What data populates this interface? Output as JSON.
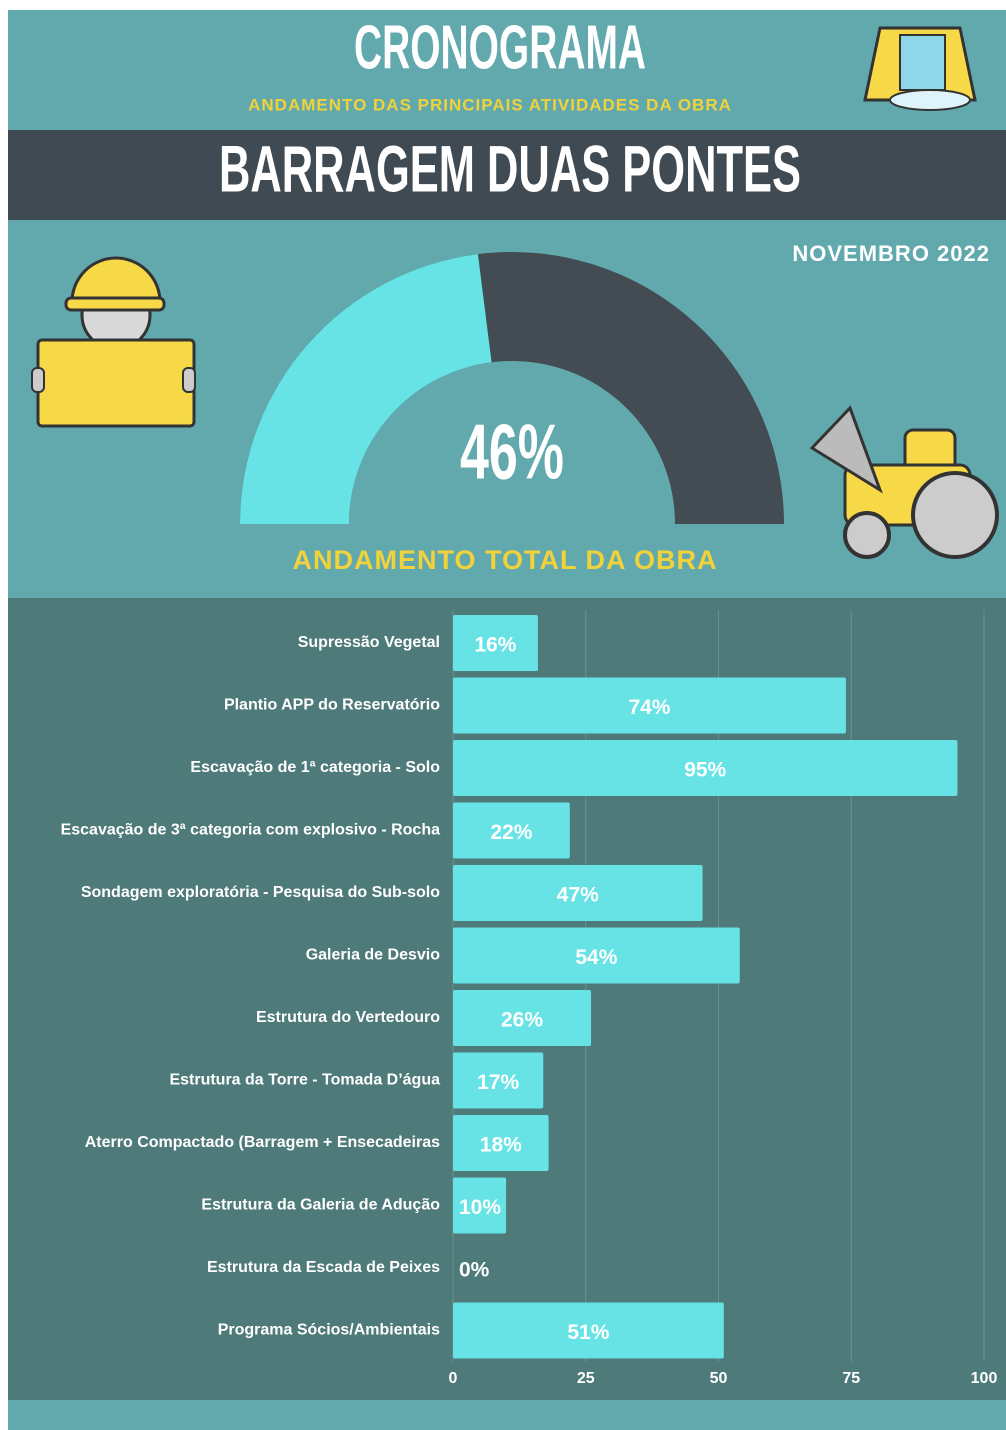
{
  "header": {
    "title": "CRONOGRAMA",
    "subtitle": "ANDAMENTO DAS PRINCIPAIS ATIVIDADES DA OBRA",
    "project": "BARRAGEM DUAS PONTES",
    "date": "NOVEMBRO 2022"
  },
  "chart_data": [
    {
      "type": "gauge",
      "title": "ANDAMENTO TOTAL DA OBRA",
      "values": [
        46
      ],
      "value_labels": [
        "46%"
      ],
      "ylim": [
        0,
        100
      ],
      "color": "#67e3e6",
      "track_color": "#434b53"
    },
    {
      "type": "bar",
      "orientation": "horizontal",
      "categories": [
        "Supressão Vegetal",
        "Plantio APP do Reservatório",
        "Escavação de 1ª categoria - Solo",
        "Escavação de 3ª categoria com explosivo - Rocha",
        "Sondagem exploratória - Pesquisa do Sub-solo",
        "Galeria de Desvio",
        "Estrutura do Vertedouro",
        "Estrutura da Torre - Tomada D’água",
        "Aterro Compactado (Barragem + Ensecadeiras",
        "Estrutura da Galeria de Adução",
        "Estrutura da Escada de Peixes",
        "Programa Sócios/Ambientais"
      ],
      "values": [
        16,
        74,
        95,
        22,
        47,
        54,
        26,
        17,
        18,
        10,
        0,
        51
      ],
      "value_labels": [
        "16%",
        "74%",
        "95%",
        "22%",
        "47%",
        "54%",
        "26%",
        "17%",
        "18%",
        "10%",
        "0%",
        "51%"
      ],
      "xlim": [
        0,
        100
      ],
      "xticks": [
        0,
        25,
        50,
        75,
        100
      ],
      "grid": true,
      "color": "#67e3e6"
    }
  ]
}
